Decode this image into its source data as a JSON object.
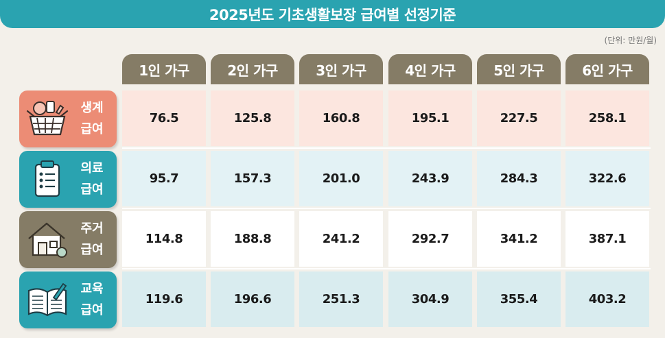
{
  "title": "2025년도 기초생활보장 급여별 선정기준",
  "unit": "(단위: 만원/월)",
  "colors": {
    "title_bar": "#2aa3b0",
    "header": "#857c66",
    "row_livelihood_label": "#ec8c75",
    "row_livelihood_bg": "#fce6df",
    "row_medical_label": "#2aa3b0",
    "row_medical_bg": "#e3f2f5",
    "row_housing_label": "#857c66",
    "row_housing_bg": "#ffffff",
    "row_education_label": "#2aa3b0",
    "row_education_bg": "#d9ecef"
  },
  "chart_data": {
    "type": "table",
    "title": "2025년도 기초생활보장 급여별 선정기준",
    "unit": "(단위: 만원/월)",
    "columns": [
      "1인 가구",
      "2인 가구",
      "3인 가구",
      "4인 가구",
      "5인 가구",
      "6인 가구"
    ],
    "rows": [
      {
        "label_1": "생계",
        "label_2": "급여",
        "icon": "shopping-basket-icon",
        "values": [
          76.5,
          125.8,
          160.8,
          195.1,
          227.5,
          258.1
        ]
      },
      {
        "label_1": "의료",
        "label_2": "급여",
        "icon": "clipboard-icon",
        "values": [
          95.7,
          157.3,
          201.0,
          243.9,
          284.3,
          322.6
        ]
      },
      {
        "label_1": "주거",
        "label_2": "급여",
        "icon": "house-icon",
        "values": [
          114.8,
          188.8,
          241.2,
          292.7,
          341.2,
          387.1
        ]
      },
      {
        "label_1": "교육",
        "label_2": "급여",
        "icon": "book-icon",
        "values": [
          119.6,
          196.6,
          251.3,
          304.9,
          355.4,
          403.2
        ]
      }
    ]
  }
}
